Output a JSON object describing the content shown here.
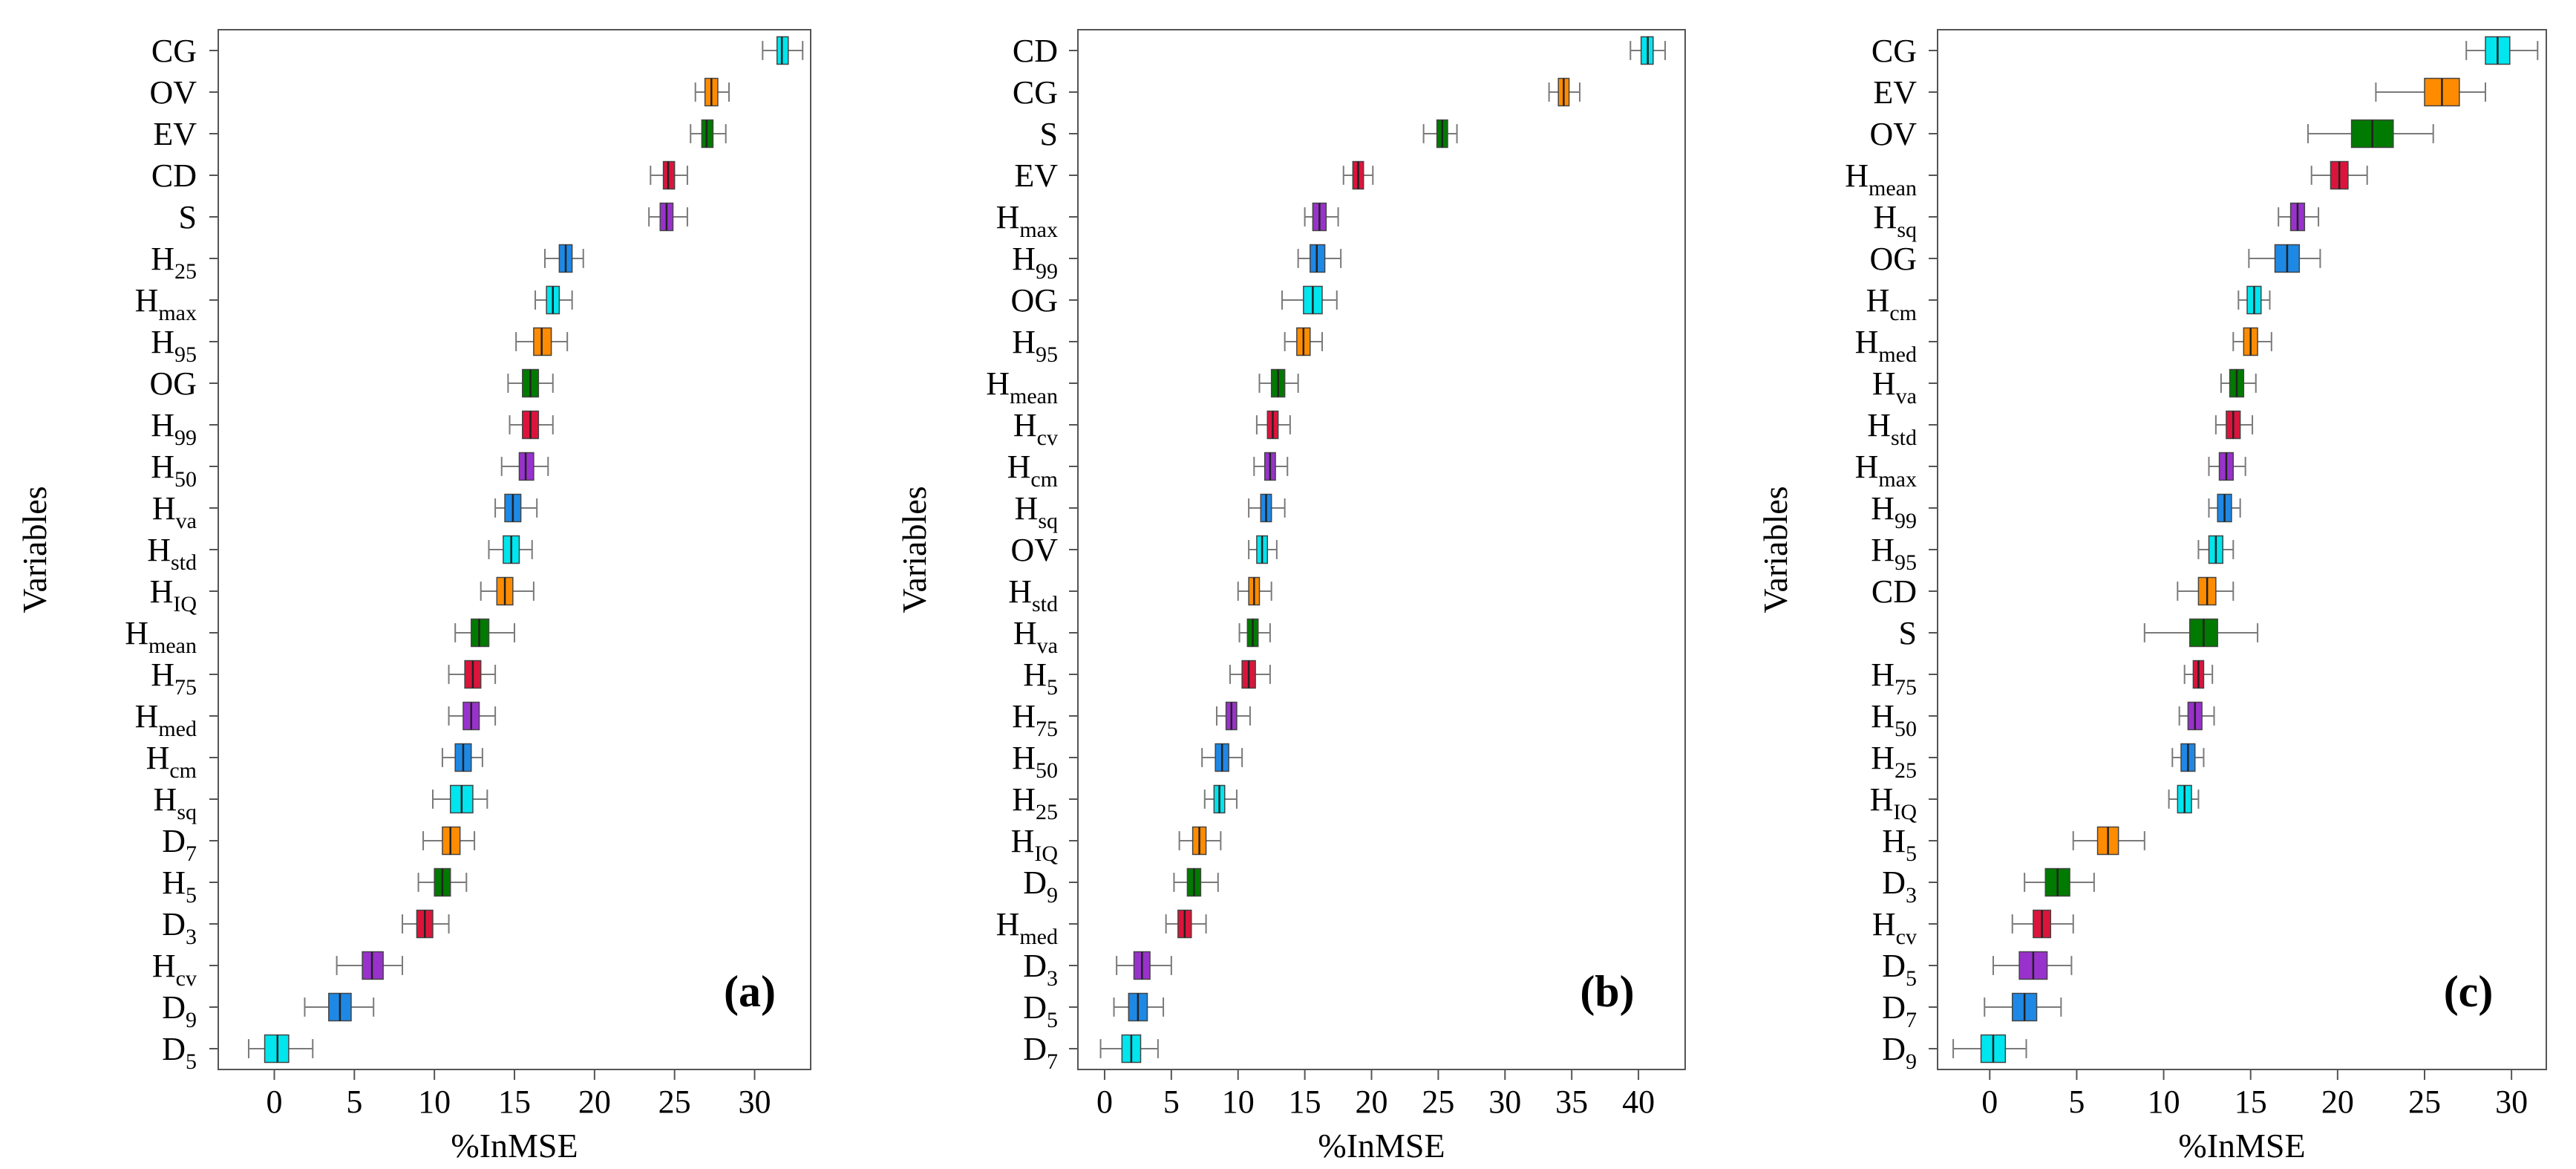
{
  "figure": {
    "ylabel": "Variables",
    "xlabel": "%InMSE",
    "box_colors": {
      "cyan": "#00e5ee",
      "orange": "#ff8c00",
      "green": "#007a00",
      "red": "#dc143c",
      "purple": "#9932cc",
      "blue": "#1e88e5"
    },
    "whisker_color": "#7a7a7a"
  },
  "chart_data": [
    {
      "type": "box",
      "panel_label": "(a)",
      "xlabel": "%InMSE",
      "ylabel": "Variables",
      "xlim": [
        -3.5,
        33.5
      ],
      "xticks": [
        0,
        5,
        10,
        15,
        20,
        25,
        30
      ],
      "variables": [
        {
          "base": "CG",
          "sub": "",
          "color": "cyan",
          "whisker_low": 30.5,
          "q1": 31.4,
          "median": 31.7,
          "q3": 32.1,
          "whisker_high": 33.0
        },
        {
          "base": "OV",
          "sub": "",
          "color": "orange",
          "whisker_low": 26.3,
          "q1": 26.9,
          "median": 27.3,
          "q3": 27.7,
          "whisker_high": 28.4
        },
        {
          "base": "EV",
          "sub": "",
          "color": "green",
          "whisker_low": 26.0,
          "q1": 26.7,
          "median": 27.0,
          "q3": 27.4,
          "whisker_high": 28.2
        },
        {
          "base": "CD",
          "sub": "",
          "color": "red",
          "whisker_low": 23.5,
          "q1": 24.3,
          "median": 24.6,
          "q3": 25.0,
          "whisker_high": 25.8
        },
        {
          "base": "S",
          "sub": "",
          "color": "purple",
          "whisker_low": 23.4,
          "q1": 24.1,
          "median": 24.5,
          "q3": 24.9,
          "whisker_high": 25.8
        },
        {
          "base": "H",
          "sub": "25",
          "color": "blue",
          "whisker_low": 16.9,
          "q1": 17.8,
          "median": 18.2,
          "q3": 18.6,
          "whisker_high": 19.3
        },
        {
          "base": "H",
          "sub": "max",
          "color": "cyan",
          "whisker_low": 16.3,
          "q1": 17.0,
          "median": 17.4,
          "q3": 17.8,
          "whisker_high": 18.6
        },
        {
          "base": "H",
          "sub": "95",
          "color": "orange",
          "whisker_low": 15.1,
          "q1": 16.2,
          "median": 16.7,
          "q3": 17.3,
          "whisker_high": 18.3
        },
        {
          "base": "OG",
          "sub": "",
          "color": "green",
          "whisker_low": 14.6,
          "q1": 15.5,
          "median": 16.0,
          "q3": 16.5,
          "whisker_high": 17.4
        },
        {
          "base": "H",
          "sub": "99",
          "color": "red",
          "whisker_low": 14.7,
          "q1": 15.5,
          "median": 16.0,
          "q3": 16.5,
          "whisker_high": 17.4
        },
        {
          "base": "H",
          "sub": "50",
          "color": "purple",
          "whisker_low": 14.2,
          "q1": 15.3,
          "median": 15.7,
          "q3": 16.2,
          "whisker_high": 17.1
        },
        {
          "base": "H",
          "sub": "va",
          "color": "blue",
          "whisker_low": 13.8,
          "q1": 14.4,
          "median": 14.9,
          "q3": 15.4,
          "whisker_high": 16.4
        },
        {
          "base": "H",
          "sub": "std",
          "color": "cyan",
          "whisker_low": 13.4,
          "q1": 14.3,
          "median": 14.8,
          "q3": 15.3,
          "whisker_high": 16.1
        },
        {
          "base": "H",
          "sub": "IQ",
          "color": "orange",
          "whisker_low": 12.9,
          "q1": 13.9,
          "median": 14.4,
          "q3": 14.9,
          "whisker_high": 16.2
        },
        {
          "base": "H",
          "sub": "mean",
          "color": "green",
          "whisker_low": 11.3,
          "q1": 12.3,
          "median": 12.8,
          "q3": 13.4,
          "whisker_high": 15.0
        },
        {
          "base": "H",
          "sub": "75",
          "color": "red",
          "whisker_low": 10.9,
          "q1": 11.9,
          "median": 12.4,
          "q3": 12.9,
          "whisker_high": 13.8
        },
        {
          "base": "H",
          "sub": "med",
          "color": "purple",
          "whisker_low": 10.9,
          "q1": 11.8,
          "median": 12.3,
          "q3": 12.8,
          "whisker_high": 13.8
        },
        {
          "base": "H",
          "sub": "cm",
          "color": "blue",
          "whisker_low": 10.5,
          "q1": 11.3,
          "median": 11.8,
          "q3": 12.3,
          "whisker_high": 13.0
        },
        {
          "base": "H",
          "sub": "sq",
          "color": "cyan",
          "whisker_low": 9.9,
          "q1": 11.0,
          "median": 11.7,
          "q3": 12.4,
          "whisker_high": 13.3
        },
        {
          "base": "D",
          "sub": "7",
          "color": "orange",
          "whisker_low": 9.3,
          "q1": 10.5,
          "median": 11.0,
          "q3": 11.6,
          "whisker_high": 12.5
        },
        {
          "base": "H",
          "sub": "5",
          "color": "green",
          "whisker_low": 9.0,
          "q1": 10.0,
          "median": 10.5,
          "q3": 11.0,
          "whisker_high": 12.0
        },
        {
          "base": "D",
          "sub": "3",
          "color": "red",
          "whisker_low": 8.0,
          "q1": 8.9,
          "median": 9.4,
          "q3": 9.9,
          "whisker_high": 10.9
        },
        {
          "base": "H",
          "sub": "cv",
          "color": "purple",
          "whisker_low": 3.9,
          "q1": 5.5,
          "median": 6.1,
          "q3": 6.8,
          "whisker_high": 8.0
        },
        {
          "base": "D",
          "sub": "9",
          "color": "blue",
          "whisker_low": 1.9,
          "q1": 3.4,
          "median": 4.1,
          "q3": 4.8,
          "whisker_high": 6.2
        },
        {
          "base": "D",
          "sub": "5",
          "color": "cyan",
          "whisker_low": -1.6,
          "q1": -0.6,
          "median": 0.2,
          "q3": 0.9,
          "whisker_high": 2.4
        }
      ]
    },
    {
      "type": "box",
      "panel_label": "(b)",
      "xlabel": "%InMSE",
      "ylabel": "Variables",
      "xlim": [
        -2.0,
        43.5
      ],
      "xticks": [
        0,
        5,
        10,
        15,
        20,
        25,
        30,
        35,
        40
      ],
      "variables": [
        {
          "base": "CD",
          "sub": "",
          "color": "cyan",
          "whisker_low": 39.4,
          "q1": 40.2,
          "median": 40.7,
          "q3": 41.1,
          "whisker_high": 42.0
        },
        {
          "base": "CG",
          "sub": "",
          "color": "orange",
          "whisker_low": 33.3,
          "q1": 34.0,
          "median": 34.4,
          "q3": 34.8,
          "whisker_high": 35.6
        },
        {
          "base": "S",
          "sub": "",
          "color": "green",
          "whisker_low": 23.9,
          "q1": 24.9,
          "median": 25.3,
          "q3": 25.7,
          "whisker_high": 26.4
        },
        {
          "base": "EV",
          "sub": "",
          "color": "red",
          "whisker_low": 17.9,
          "q1": 18.6,
          "median": 19.0,
          "q3": 19.4,
          "whisker_high": 20.1
        },
        {
          "base": "H",
          "sub": "max",
          "color": "purple",
          "whisker_low": 15.0,
          "q1": 15.6,
          "median": 16.1,
          "q3": 16.6,
          "whisker_high": 17.5
        },
        {
          "base": "H",
          "sub": "99",
          "color": "blue",
          "whisker_low": 14.5,
          "q1": 15.4,
          "median": 15.9,
          "q3": 16.5,
          "whisker_high": 17.7
        },
        {
          "base": "OG",
          "sub": "",
          "color": "cyan",
          "whisker_low": 13.3,
          "q1": 14.9,
          "median": 15.6,
          "q3": 16.3,
          "whisker_high": 17.4
        },
        {
          "base": "H",
          "sub": "95",
          "color": "orange",
          "whisker_low": 13.5,
          "q1": 14.4,
          "median": 14.9,
          "q3": 15.4,
          "whisker_high": 16.3
        },
        {
          "base": "H",
          "sub": "mean",
          "color": "green",
          "whisker_low": 11.6,
          "q1": 12.5,
          "median": 13.0,
          "q3": 13.5,
          "whisker_high": 14.5
        },
        {
          "base": "H",
          "sub": "cv",
          "color": "red",
          "whisker_low": 11.4,
          "q1": 12.2,
          "median": 12.6,
          "q3": 13.0,
          "whisker_high": 13.9
        },
        {
          "base": "H",
          "sub": "cm",
          "color": "purple",
          "whisker_low": 11.2,
          "q1": 12.0,
          "median": 12.4,
          "q3": 12.8,
          "whisker_high": 13.7
        },
        {
          "base": "H",
          "sub": "sq",
          "color": "blue",
          "whisker_low": 10.8,
          "q1": 11.7,
          "median": 12.1,
          "q3": 12.5,
          "whisker_high": 13.5
        },
        {
          "base": "OV",
          "sub": "",
          "color": "cyan",
          "whisker_low": 10.8,
          "q1": 11.4,
          "median": 11.8,
          "q3": 12.2,
          "whisker_high": 12.9
        },
        {
          "base": "H",
          "sub": "std",
          "color": "orange",
          "whisker_low": 10.0,
          "q1": 10.8,
          "median": 11.2,
          "q3": 11.6,
          "whisker_high": 12.5
        },
        {
          "base": "H",
          "sub": "va",
          "color": "green",
          "whisker_low": 10.1,
          "q1": 10.7,
          "median": 11.1,
          "q3": 11.5,
          "whisker_high": 12.4
        },
        {
          "base": "H",
          "sub": "5",
          "color": "red",
          "whisker_low": 9.4,
          "q1": 10.3,
          "median": 10.8,
          "q3": 11.3,
          "whisker_high": 12.4
        },
        {
          "base": "H",
          "sub": "75",
          "color": "purple",
          "whisker_low": 8.4,
          "q1": 9.1,
          "median": 9.5,
          "q3": 9.9,
          "whisker_high": 10.9
        },
        {
          "base": "H",
          "sub": "50",
          "color": "blue",
          "whisker_low": 7.3,
          "q1": 8.3,
          "median": 8.8,
          "q3": 9.3,
          "whisker_high": 10.3
        },
        {
          "base": "H",
          "sub": "25",
          "color": "cyan",
          "whisker_low": 7.5,
          "q1": 8.2,
          "median": 8.6,
          "q3": 9.0,
          "whisker_high": 9.9
        },
        {
          "base": "H",
          "sub": "IQ",
          "color": "orange",
          "whisker_low": 5.6,
          "q1": 6.6,
          "median": 7.1,
          "q3": 7.6,
          "whisker_high": 8.7
        },
        {
          "base": "D",
          "sub": "9",
          "color": "green",
          "whisker_low": 5.2,
          "q1": 6.2,
          "median": 6.7,
          "q3": 7.2,
          "whisker_high": 8.5
        },
        {
          "base": "H",
          "sub": "med",
          "color": "red",
          "whisker_low": 4.6,
          "q1": 5.5,
          "median": 6.0,
          "q3": 6.5,
          "whisker_high": 7.6
        },
        {
          "base": "D",
          "sub": "3",
          "color": "purple",
          "whisker_low": 0.9,
          "q1": 2.2,
          "median": 2.8,
          "q3": 3.4,
          "whisker_high": 5.0
        },
        {
          "base": "D",
          "sub": "5",
          "color": "blue",
          "whisker_low": 0.7,
          "q1": 1.8,
          "median": 2.5,
          "q3": 3.2,
          "whisker_high": 4.4
        },
        {
          "base": "D",
          "sub": "7",
          "color": "cyan",
          "whisker_low": -0.3,
          "q1": 1.3,
          "median": 2.0,
          "q3": 2.7,
          "whisker_high": 4.0
        }
      ]
    },
    {
      "type": "box",
      "panel_label": "(c)",
      "xlabel": "%InMSE",
      "ylabel": "Variables",
      "xlim": [
        -3.0,
        32.0
      ],
      "xticks": [
        0,
        5,
        10,
        15,
        20,
        25,
        30
      ],
      "variables": [
        {
          "base": "CG",
          "sub": "",
          "color": "cyan",
          "whisker_low": 27.4,
          "q1": 28.5,
          "median": 29.2,
          "q3": 29.9,
          "whisker_high": 31.5
        },
        {
          "base": "EV",
          "sub": "",
          "color": "orange",
          "whisker_low": 22.2,
          "q1": 25.0,
          "median": 26.0,
          "q3": 27.0,
          "whisker_high": 28.5
        },
        {
          "base": "OV",
          "sub": "",
          "color": "green",
          "whisker_low": 18.3,
          "q1": 20.8,
          "median": 22.0,
          "q3": 23.2,
          "whisker_high": 25.5
        },
        {
          "base": "H",
          "sub": "mean",
          "color": "red",
          "whisker_low": 18.5,
          "q1": 19.6,
          "median": 20.1,
          "q3": 20.6,
          "whisker_high": 21.7
        },
        {
          "base": "H",
          "sub": "sq",
          "color": "purple",
          "whisker_low": 16.6,
          "q1": 17.3,
          "median": 17.7,
          "q3": 18.1,
          "whisker_high": 18.9
        },
        {
          "base": "OG",
          "sub": "",
          "color": "blue",
          "whisker_low": 14.9,
          "q1": 16.4,
          "median": 17.1,
          "q3": 17.8,
          "whisker_high": 19.0
        },
        {
          "base": "H",
          "sub": "cm",
          "color": "cyan",
          "whisker_low": 14.3,
          "q1": 14.8,
          "median": 15.2,
          "q3": 15.6,
          "whisker_high": 16.1
        },
        {
          "base": "H",
          "sub": "med",
          "color": "orange",
          "whisker_low": 14.0,
          "q1": 14.6,
          "median": 15.0,
          "q3": 15.4,
          "whisker_high": 16.2
        },
        {
          "base": "H",
          "sub": "va",
          "color": "green",
          "whisker_low": 13.3,
          "q1": 13.8,
          "median": 14.2,
          "q3": 14.6,
          "whisker_high": 15.3
        },
        {
          "base": "H",
          "sub": "std",
          "color": "red",
          "whisker_low": 13.0,
          "q1": 13.6,
          "median": 14.0,
          "q3": 14.4,
          "whisker_high": 15.1
        },
        {
          "base": "H",
          "sub": "max",
          "color": "purple",
          "whisker_low": 12.6,
          "q1": 13.2,
          "median": 13.6,
          "q3": 14.0,
          "whisker_high": 14.7
        },
        {
          "base": "H",
          "sub": "99",
          "color": "blue",
          "whisker_low": 12.6,
          "q1": 13.1,
          "median": 13.5,
          "q3": 13.9,
          "whisker_high": 14.4
        },
        {
          "base": "H",
          "sub": "95",
          "color": "cyan",
          "whisker_low": 12.0,
          "q1": 12.6,
          "median": 13.0,
          "q3": 13.4,
          "whisker_high": 14.0
        },
        {
          "base": "CD",
          "sub": "",
          "color": "orange",
          "whisker_low": 10.8,
          "q1": 12.0,
          "median": 12.5,
          "q3": 13.0,
          "whisker_high": 14.0
        },
        {
          "base": "S",
          "sub": "",
          "color": "green",
          "whisker_low": 8.9,
          "q1": 11.5,
          "median": 12.3,
          "q3": 13.1,
          "whisker_high": 15.4
        },
        {
          "base": "H",
          "sub": "75",
          "color": "red",
          "whisker_low": 11.2,
          "q1": 11.7,
          "median": 12.0,
          "q3": 12.3,
          "whisker_high": 12.8
        },
        {
          "base": "H",
          "sub": "50",
          "color": "purple",
          "whisker_low": 10.9,
          "q1": 11.4,
          "median": 11.8,
          "q3": 12.2,
          "whisker_high": 12.9
        },
        {
          "base": "H",
          "sub": "25",
          "color": "blue",
          "whisker_low": 10.5,
          "q1": 11.0,
          "median": 11.4,
          "q3": 11.8,
          "whisker_high": 12.3
        },
        {
          "base": "H",
          "sub": "IQ",
          "color": "cyan",
          "whisker_low": 10.3,
          "q1": 10.8,
          "median": 11.2,
          "q3": 11.6,
          "whisker_high": 12.0
        },
        {
          "base": "H",
          "sub": "5",
          "color": "orange",
          "whisker_low": 4.8,
          "q1": 6.2,
          "median": 6.8,
          "q3": 7.4,
          "whisker_high": 8.9
        },
        {
          "base": "D",
          "sub": "3",
          "color": "green",
          "whisker_low": 2.0,
          "q1": 3.2,
          "median": 3.9,
          "q3": 4.6,
          "whisker_high": 6.0
        },
        {
          "base": "H",
          "sub": "cv",
          "color": "red",
          "whisker_low": 1.3,
          "q1": 2.5,
          "median": 3.0,
          "q3": 3.5,
          "whisker_high": 4.8
        },
        {
          "base": "D",
          "sub": "5",
          "color": "purple",
          "whisker_low": 0.2,
          "q1": 1.7,
          "median": 2.5,
          "q3": 3.3,
          "whisker_high": 4.7
        },
        {
          "base": "D",
          "sub": "7",
          "color": "blue",
          "whisker_low": -0.3,
          "q1": 1.3,
          "median": 2.0,
          "q3": 2.7,
          "whisker_high": 4.1
        },
        {
          "base": "D",
          "sub": "9",
          "color": "cyan",
          "whisker_low": -2.1,
          "q1": -0.5,
          "median": 0.2,
          "q3": 0.9,
          "whisker_high": 2.1
        }
      ]
    }
  ]
}
